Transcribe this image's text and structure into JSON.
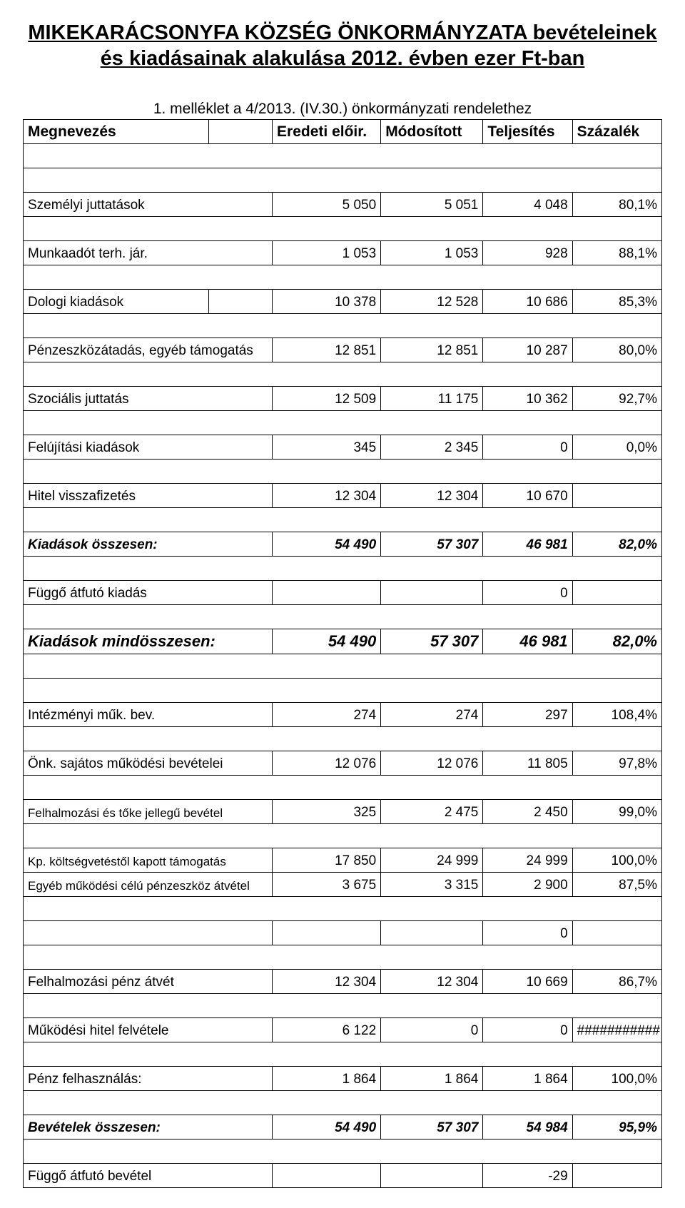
{
  "title_line1": "MIKEKARÁCSONYFA KÖZSÉG ÖNKORMÁNYZATA  bevételeinek és kiadásainak alakulása 2012. évben ezer Ft-ban",
  "subtitle": "1. melléklet a 4/2013. (IV.30.) önkormányzati rendelethez",
  "headers": {
    "megnevezes": "Megnevezés",
    "eredeti": "Eredeti előir.",
    "modositott": "Módosított",
    "teljesites": "Teljesítés",
    "szazalek": "Százalék"
  },
  "rows": {
    "szemelyi": {
      "label": "Személyi juttatások",
      "c3": "5 050",
      "c4": "5 051",
      "c5": "4 048",
      "c6": "80,1%"
    },
    "munkaadot": {
      "label": "Munkaadót terh. jár.",
      "c3": "1 053",
      "c4": "1 053",
      "c5": "928",
      "c6": "88,1%"
    },
    "dologi": {
      "label": "Dologi kiadások",
      "c3": "10 378",
      "c4": "12 528",
      "c5": "10 686",
      "c6": "85,3%"
    },
    "penz": {
      "label": "Pénzeszközátadás, egyéb támogatás",
      "c3": "12 851",
      "c4": "12 851",
      "c5": "10 287",
      "c6": "80,0%"
    },
    "szocialis": {
      "label": "Szociális juttatás",
      "c3": "12 509",
      "c4": "11 175",
      "c5": "10 362",
      "c6": "92,7%"
    },
    "felujitasi": {
      "label": "Felújítási kiadások",
      "c3": "345",
      "c4": "2 345",
      "c5": "0",
      "c6": "0,0%"
    },
    "hitel": {
      "label": "Hitel visszafizetés",
      "c3": "12 304",
      "c4": "12 304",
      "c5": "10 670",
      "c6": ""
    },
    "kiadossz": {
      "label": "Kiadások összesen:",
      "c3": "54 490",
      "c4": "57 307",
      "c5": "46 981",
      "c6": "82,0%"
    },
    "fuggo_k": {
      "label": "Függő átfutó kiadás",
      "c3": "",
      "c4": "",
      "c5": "0",
      "c6": ""
    },
    "kiadmind": {
      "label": "Kiadások mindösszesen:",
      "c3": "54 490",
      "c4": "57 307",
      "c5": "46 981",
      "c6": "82,0%"
    },
    "intezmenyi": {
      "label": "Intézményi műk. bev.",
      "c3": "274",
      "c4": "274",
      "c5": "297",
      "c6": "108,4%"
    },
    "onk": {
      "label": "Önk. sajátos működési bevételei",
      "c3": "12 076",
      "c4": "12 076",
      "c5": "11 805",
      "c6": "97,8%"
    },
    "felhalm_b": {
      "label": "Felhalmozási és tőke jellegű bevétel",
      "c3": "325",
      "c4": "2 475",
      "c5": "2 450",
      "c6": "99,0%"
    },
    "kp": {
      "label": "Kp. költségvetéstől kapott támogatás",
      "c3": "17 850",
      "c4": "24 999",
      "c5": "24 999",
      "c6": "100,0%"
    },
    "egyeb": {
      "label": "Egyéb működési célú pénzeszköz átvétel",
      "c3": "3 675",
      "c4": "3 315",
      "c5": "2 900",
      "c6": "87,5%"
    },
    "zero": {
      "label": "",
      "c3": "",
      "c4": "",
      "c5": "0",
      "c6": ""
    },
    "felhalm_p": {
      "label": "Felhalmozási pénz átvét",
      "c3": "12 304",
      "c4": "12 304",
      "c5": "10 669",
      "c6": "86,7%"
    },
    "mukodesi": {
      "label": "Működési hitel felvétele",
      "c3": "6 122",
      "c4": "0",
      "c5": "0",
      "c6": "###########"
    },
    "penzfel": {
      "label": "Pénz felhasználás:",
      "c3": "1 864",
      "c4": "1 864",
      "c5": "1 864",
      "c6": "100,0%"
    },
    "bevossz": {
      "label": "Bevételek összesen:",
      "c3": "54 490",
      "c4": "57 307",
      "c5": "54 984",
      "c6": "95,9%"
    },
    "fuggo_b": {
      "label": "Függő átfutó bevétel",
      "c3": "",
      "c4": "",
      "c5": "-29",
      "c6": ""
    }
  },
  "style": {
    "background": "#ffffff",
    "text_color": "#000000",
    "border_color": "#000000",
    "title_fontsize": 29,
    "body_fontsize": 19,
    "header_fontsize": 21
  }
}
